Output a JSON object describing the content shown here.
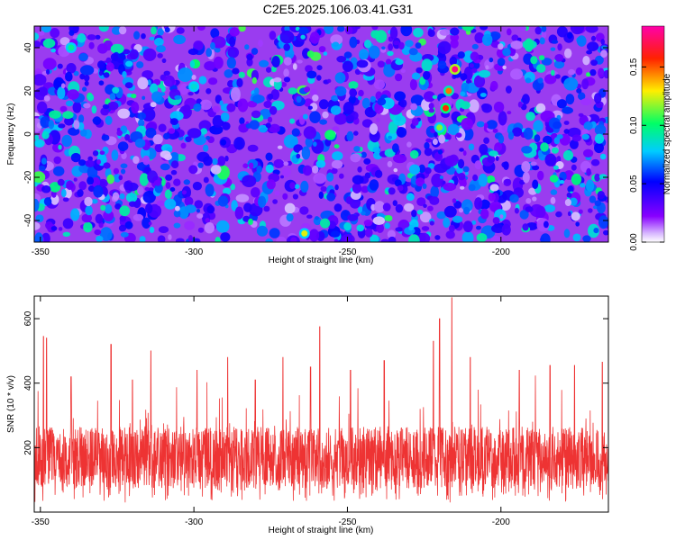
{
  "title": "C2E5.2025.106.03.41.G31",
  "chart_data": [
    {
      "type": "heatmap",
      "xlabel": "Height of straight line (km)",
      "ylabel": "Frequency (Hz)",
      "xlim": [
        -352,
        -165
      ],
      "ylim": [
        -50,
        50
      ],
      "xticks": [
        -350,
        -300,
        -250,
        -200
      ],
      "yticks": [
        -40,
        -20,
        0,
        20,
        40
      ],
      "colorbar": {
        "label": "Normalized spectral amplitude",
        "range": [
          0.0,
          0.185
        ],
        "ticks": [
          "0.00",
          "0.05",
          "0.10",
          "0.15"
        ],
        "colors": [
          "#ffffff",
          "#8800ff",
          "#0000ff",
          "#00ccff",
          "#00ff66",
          "#ffcc00",
          "#ff0000",
          "#ff00aa"
        ]
      },
      "highlights": [
        {
          "x": -215,
          "y": 30,
          "value": 0.18
        },
        {
          "x": -218,
          "y": 12,
          "value": 0.16
        },
        {
          "x": -217,
          "y": 20,
          "value": 0.15
        },
        {
          "x": -220,
          "y": 3,
          "value": 0.12
        },
        {
          "x": -264,
          "y": -46,
          "value": 0.13
        },
        {
          "x": -340,
          "y": 40,
          "value": 0.1
        },
        {
          "x": -300,
          "y": 22,
          "value": 0.09
        }
      ]
    },
    {
      "type": "line",
      "xlabel": "Height of straight line (km)",
      "ylabel": "SNR (10 * v/v)",
      "xlim": [
        -352,
        -165
      ],
      "ylim": [
        0,
        670
      ],
      "xticks": [
        -350,
        -300,
        -250,
        -200
      ],
      "yticks": [
        200,
        400,
        600
      ],
      "color": "#ee3333",
      "baseline_mean": 170,
      "spikes": [
        {
          "x": -349,
          "y": 545
        },
        {
          "x": -348,
          "y": 540
        },
        {
          "x": -340,
          "y": 420
        },
        {
          "x": -327,
          "y": 520
        },
        {
          "x": -320,
          "y": 410
        },
        {
          "x": -314,
          "y": 500
        },
        {
          "x": -299,
          "y": 440
        },
        {
          "x": -289,
          "y": 480
        },
        {
          "x": -280,
          "y": 410
        },
        {
          "x": -271,
          "y": 480
        },
        {
          "x": -262,
          "y": 450
        },
        {
          "x": -259,
          "y": 575
        },
        {
          "x": -249,
          "y": 440
        },
        {
          "x": -238,
          "y": 470
        },
        {
          "x": -222,
          "y": 530
        },
        {
          "x": -220,
          "y": 600
        },
        {
          "x": -216,
          "y": 665
        },
        {
          "x": -210,
          "y": 480
        },
        {
          "x": -194,
          "y": 440
        },
        {
          "x": -184,
          "y": 455
        },
        {
          "x": -176,
          "y": 455
        },
        {
          "x": -167,
          "y": 465
        }
      ]
    }
  ]
}
